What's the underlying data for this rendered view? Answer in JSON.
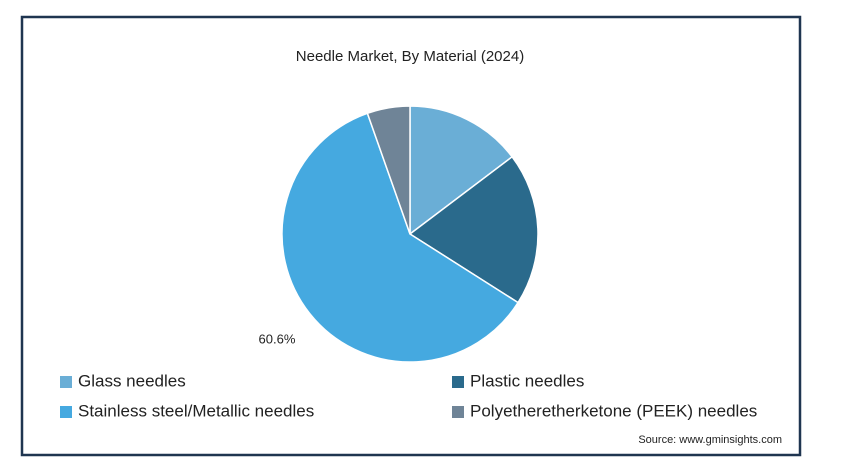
{
  "chart_data": {
    "type": "pie",
    "title": "Needle Market, By Material (2024)",
    "categories": [
      "Glass needles",
      "Plastic needles",
      "Stainless steel/Metallic needles",
      "Polyetheretherketone (PEEK) needles"
    ],
    "values": [
      14.7,
      19.3,
      60.6,
      5.4
    ],
    "value_labels": [
      null,
      null,
      "60.6%",
      null
    ],
    "colors": [
      "#6aaed6",
      "#2a6a8c",
      "#45a9e0",
      "#6f8497"
    ],
    "source": "Source: www.gminsights.com"
  }
}
